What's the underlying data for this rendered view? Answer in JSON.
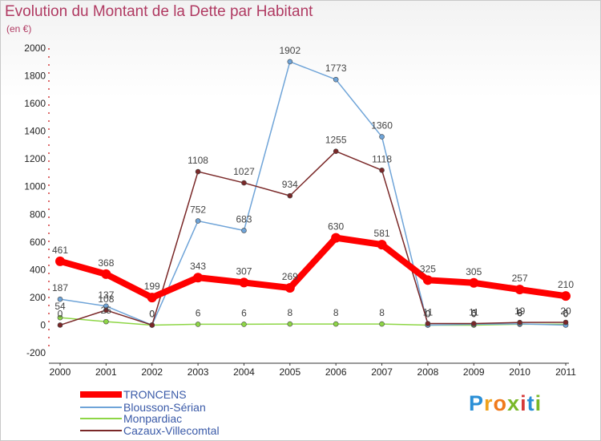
{
  "header": {
    "title": "Evolution du Montant de la Dette par Habitant",
    "subtitle": "(en €)"
  },
  "chart_data": {
    "type": "line",
    "title": "Evolution du Montant de la Dette par Habitant",
    "subtitle": "(en €)",
    "xlabel": "",
    "ylabel": "",
    "x": [
      "2000",
      "2001",
      "2002",
      "2003",
      "2004",
      "2005",
      "2006",
      "2007",
      "2008",
      "2009",
      "2010",
      "2011"
    ],
    "ylim": [
      -200,
      2000
    ],
    "yticks": [
      "-200",
      "0",
      "200",
      "400",
      "600",
      "800",
      "1000",
      "1200",
      "1400",
      "1600",
      "1800",
      "2000"
    ],
    "grid": false,
    "legend_position": "bottom-left",
    "series": [
      {
        "name": "Monpardiac",
        "color": "#8ed646",
        "values": [
          54,
          25,
          0,
          6,
          6,
          8,
          8,
          8,
          0,
          0,
          6,
          6
        ],
        "labels": [
          "54",
          "25",
          "0",
          "6",
          "6",
          "8",
          "8",
          "8",
          "0",
          "0",
          "6",
          "6"
        ]
      },
      {
        "name": "Blousson-Sérian",
        "color": "#6fa4d8",
        "values": [
          187,
          137,
          0,
          752,
          683,
          1902,
          1773,
          1360,
          0,
          6,
          9,
          0
        ],
        "labels": [
          "187",
          "137",
          "0",
          "752",
          "683",
          "1902",
          "1773",
          "1360",
          "0",
          "6",
          "9",
          "0"
        ]
      },
      {
        "name": "Cazaux-Villecomtal",
        "color": "#7a2828",
        "values": [
          0,
          108,
          0,
          1108,
          1027,
          934,
          1255,
          1118,
          11,
          11,
          19,
          20
        ],
        "labels": [
          "0",
          "108",
          "0",
          "1108",
          "1027",
          "934",
          "1255",
          "1118",
          "11",
          "11",
          "19",
          "20"
        ]
      },
      {
        "name": "TRONCENS",
        "color": "#ff0000",
        "values": [
          461,
          368,
          199,
          343,
          307,
          269,
          630,
          581,
          325,
          305,
          257,
          210
        ],
        "labels": [
          "461",
          "368",
          "199",
          "343",
          "307",
          "269",
          "630",
          "581",
          "325",
          "305",
          "257",
          "210"
        ]
      }
    ],
    "legend_order": [
      "TRONCENS",
      "Blousson-Sérian",
      "Monpardiac",
      "Cazaux-Villecomtal"
    ]
  },
  "legend": [
    {
      "label": "TRONCENS",
      "color": "#ff0000"
    },
    {
      "label": "Blousson-Sérian",
      "color": "#6fa4d8"
    },
    {
      "label": "Monpardiac",
      "color": "#8ed646"
    },
    {
      "label": "Cazaux-Villecomtal",
      "color": "#7a2828"
    }
  ],
  "logo": {
    "letters": [
      "P",
      "r",
      "o",
      "x",
      "i",
      "t",
      "i"
    ],
    "colors": [
      "#2a8fd6",
      "#f0a21c",
      "#f07a1c",
      "#7ab82a",
      "#d63a3a",
      "#2a8fd6",
      "#7ab82a"
    ]
  }
}
